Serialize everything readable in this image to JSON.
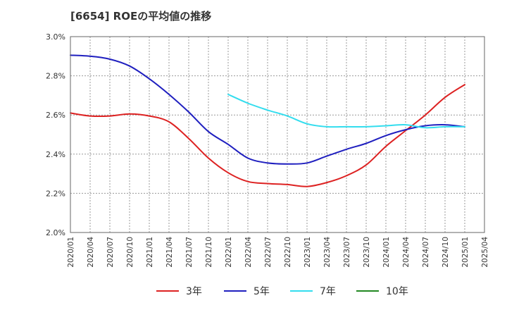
{
  "chart_data": {
    "type": "line",
    "title": "[6654]  ROEの平均値の推移",
    "xlabel": "",
    "ylabel": "",
    "ylim": [
      2.0,
      3.0
    ],
    "yticks": [
      "2.0%",
      "2.2%",
      "2.4%",
      "2.6%",
      "2.8%",
      "3.0%"
    ],
    "x_tick_labels": [
      "2020/01",
      "2020/04",
      "2020/07",
      "2020/10",
      "2021/01",
      "2021/04",
      "2021/07",
      "2021/10",
      "2022/01",
      "2022/04",
      "2022/07",
      "2022/10",
      "2023/01",
      "2023/04",
      "2023/07",
      "2023/10",
      "2024/01",
      "2024/04",
      "2024/07",
      "2024/10",
      "2025/01",
      "2025/04"
    ],
    "grid": true,
    "legend_position": "bottom",
    "series": [
      {
        "name": "3年",
        "color": "#dd2222",
        "points": [
          [
            "2020/01",
            2.61
          ],
          [
            "2020/04",
            2.595
          ],
          [
            "2020/07",
            2.595
          ],
          [
            "2020/10",
            2.605
          ],
          [
            "2021/01",
            2.595
          ],
          [
            "2021/04",
            2.565
          ],
          [
            "2021/07",
            2.48
          ],
          [
            "2021/10",
            2.38
          ],
          [
            "2022/01",
            2.305
          ],
          [
            "2022/04",
            2.26
          ],
          [
            "2022/07",
            2.25
          ],
          [
            "2022/10",
            2.245
          ],
          [
            "2023/01",
            2.235
          ],
          [
            "2023/04",
            2.255
          ],
          [
            "2023/07",
            2.29
          ],
          [
            "2023/10",
            2.345
          ],
          [
            "2024/01",
            2.44
          ],
          [
            "2024/04",
            2.52
          ],
          [
            "2024/07",
            2.6
          ],
          [
            "2024/10",
            2.69
          ],
          [
            "2025/01",
            2.755
          ]
        ]
      },
      {
        "name": "5年",
        "color": "#1f1fbf",
        "points": [
          [
            "2020/01",
            2.905
          ],
          [
            "2020/04",
            2.9
          ],
          [
            "2020/07",
            2.885
          ],
          [
            "2020/10",
            2.85
          ],
          [
            "2021/01",
            2.785
          ],
          [
            "2021/04",
            2.705
          ],
          [
            "2021/07",
            2.615
          ],
          [
            "2021/10",
            2.515
          ],
          [
            "2022/01",
            2.45
          ],
          [
            "2022/04",
            2.38
          ],
          [
            "2022/07",
            2.355
          ],
          [
            "2022/10",
            2.35
          ],
          [
            "2023/01",
            2.355
          ],
          [
            "2023/04",
            2.39
          ],
          [
            "2023/07",
            2.425
          ],
          [
            "2023/10",
            2.455
          ],
          [
            "2024/01",
            2.495
          ],
          [
            "2024/04",
            2.525
          ],
          [
            "2024/07",
            2.545
          ],
          [
            "2024/10",
            2.55
          ],
          [
            "2025/01",
            2.54
          ]
        ]
      },
      {
        "name": "7年",
        "color": "#33ddee",
        "points": [
          [
            "2022/01",
            2.705
          ],
          [
            "2022/04",
            2.66
          ],
          [
            "2022/07",
            2.625
          ],
          [
            "2022/10",
            2.595
          ],
          [
            "2023/01",
            2.555
          ],
          [
            "2023/04",
            2.54
          ],
          [
            "2023/07",
            2.54
          ],
          [
            "2023/10",
            2.54
          ],
          [
            "2024/01",
            2.545
          ],
          [
            "2024/04",
            2.55
          ],
          [
            "2024/07",
            2.535
          ],
          [
            "2024/10",
            2.54
          ],
          [
            "2025/01",
            2.54
          ]
        ]
      },
      {
        "name": "10年",
        "color": "#228822",
        "points": []
      }
    ]
  }
}
